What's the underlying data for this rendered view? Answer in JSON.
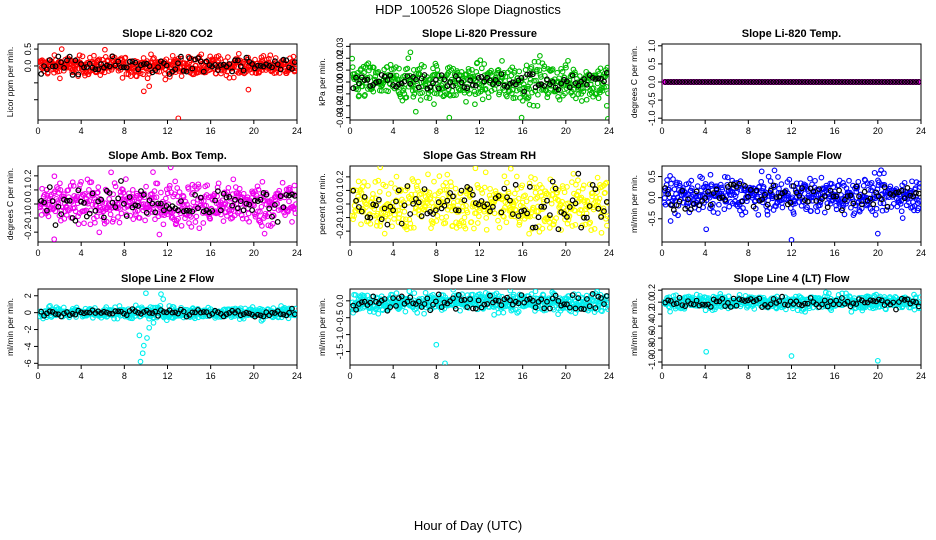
{
  "title": "HDP_100526  Slope Diagnostics",
  "xlabel": "Hour of Day (UTC)",
  "chart_data": [
    {
      "type": "scatter",
      "title": "Slope Li-820 CO2",
      "ylabel": "Licor ppm per min.",
      "xlim": [
        0,
        24
      ],
      "xticks": [
        0,
        4,
        8,
        12,
        16,
        20,
        24
      ],
      "ylim": [
        -1.6,
        0.65
      ],
      "yticks": [
        -1.0,
        -0.5,
        0.0,
        0.5
      ],
      "ytick_labels": [
        "",
        "",
        "0.0",
        "0.5"
      ],
      "color": "#ff0000",
      "center": 0.0,
      "spread": 0.14,
      "hourly_spread": 0.13,
      "outliers": [
        [
          8.6,
          -0.3
        ],
        [
          9.8,
          -0.75
        ],
        [
          10.3,
          -0.6
        ],
        [
          11.8,
          -0.4
        ],
        [
          13.0,
          -1.55
        ],
        [
          19.5,
          -0.7
        ],
        [
          2.2,
          0.5
        ],
        [
          6.2,
          0.48
        ]
      ]
    },
    {
      "type": "scatter",
      "title": "Slope Li-820 Pressure",
      "ylabel": "kPa per min.",
      "xlim": [
        0,
        24
      ],
      "xticks": [
        0,
        4,
        8,
        12,
        16,
        20,
        24
      ],
      "ylim": [
        -0.032,
        0.032
      ],
      "yticks": [
        -0.03,
        -0.02,
        -0.01,
        0.0,
        0.01,
        0.02,
        0.03
      ],
      "ytick_labels": [
        "-0.03",
        "-0.02",
        "-0.01",
        "0.00",
        "0.01",
        "0.02",
        "0.03"
      ],
      "color": "#00bb00",
      "center": 0.0,
      "spread": 0.008,
      "hourly_spread": 0.004,
      "outliers": [
        [
          5.6,
          0.025
        ],
        [
          6.1,
          -0.025
        ],
        [
          9.2,
          -0.03
        ],
        [
          15.9,
          -0.03
        ],
        [
          17.6,
          0.022
        ],
        [
          23.9,
          -0.031
        ],
        [
          23.8,
          -0.02
        ]
      ]
    },
    {
      "type": "scatter",
      "title": "Slope Li-820 Temp.",
      "ylabel": "degrees C per min.",
      "xlim": [
        0,
        24
      ],
      "xticks": [
        0,
        4,
        8,
        12,
        16,
        20,
        24
      ],
      "ylim": [
        -1.05,
        1.05
      ],
      "yticks": [
        -1.0,
        -0.5,
        0.0,
        0.5,
        1.0
      ],
      "ytick_labels": [
        "-1.0",
        "-0.5",
        "0.0",
        "0.5",
        "1.0"
      ],
      "color": "#ff00ff",
      "center": 0.0,
      "spread": 0.0,
      "hourly_spread": 0.0,
      "outliers": []
    },
    {
      "type": "scatter",
      "title": "Slope Amb. Box Temp.",
      "ylabel": "degrees C per min.",
      "xlim": [
        0,
        24
      ],
      "xticks": [
        0,
        4,
        8,
        12,
        16,
        20,
        24
      ],
      "ylim": [
        -0.27,
        0.27
      ],
      "yticks": [
        -0.2,
        -0.1,
        0.0,
        0.1,
        0.2
      ],
      "ytick_labels": [
        "-0.2",
        "-0.1",
        "0.0",
        "0.1",
        "0.2"
      ],
      "color": "#ee00ee",
      "center": 0.0,
      "spread": 0.08,
      "hourly_spread": 0.06,
      "outliers": [
        [
          12.3,
          0.26
        ],
        [
          1.5,
          -0.25
        ],
        [
          21.0,
          -0.21
        ]
      ]
    },
    {
      "type": "scatter",
      "title": "Slope Gas Stream RH",
      "ylabel": "percent per min.",
      "xlim": [
        0,
        24
      ],
      "xticks": [
        0,
        4,
        8,
        12,
        16,
        20,
        24
      ],
      "ylim": [
        -0.28,
        0.28
      ],
      "yticks": [
        -0.2,
        -0.1,
        0.0,
        0.1,
        0.2
      ],
      "ytick_labels": [
        "-0.2",
        "-0.1",
        "0.0",
        "0.1",
        "0.2"
      ],
      "color": "#ffff00",
      "center": 0.0,
      "spread": 0.1,
      "hourly_spread": 0.09,
      "outliers": [
        [
          2.8,
          0.27
        ],
        [
          14.9,
          0.26
        ]
      ]
    },
    {
      "type": "scatter",
      "title": "Slope Sample Flow",
      "ylabel": "ml/min per min.",
      "xlim": [
        0,
        24
      ],
      "xticks": [
        0,
        4,
        8,
        12,
        16,
        20,
        24
      ],
      "ylim": [
        -1.05,
        0.75
      ],
      "yticks": [
        -0.5,
        0.0,
        0.5
      ],
      "ytick_labels": [
        "-0.5",
        "0.0",
        "0.5"
      ],
      "color": "#0000ff",
      "center": 0.05,
      "spread": 0.2,
      "hourly_spread": 0.18,
      "outliers": [
        [
          4.1,
          -0.75
        ],
        [
          12.0,
          -1.0
        ],
        [
          20.0,
          -0.85
        ],
        [
          20.3,
          0.65
        ]
      ]
    },
    {
      "type": "scatter",
      "title": "Slope Line 2 Flow",
      "ylabel": "ml/min per min.",
      "xlim": [
        0,
        24
      ],
      "xticks": [
        0,
        4,
        8,
        12,
        16,
        20,
        24
      ],
      "ylim": [
        -6.2,
        2.8
      ],
      "yticks": [
        -6,
        -4,
        -2,
        0,
        2
      ],
      "ytick_labels": [
        "-6",
        "-4",
        "-2",
        "0",
        "2"
      ],
      "color": "#00eeee",
      "center": 0.0,
      "spread": 0.35,
      "hourly_spread": 0.2,
      "outliers": [
        [
          9.5,
          -5.8
        ],
        [
          9.7,
          -4.8
        ],
        [
          9.8,
          -3.9
        ],
        [
          10.1,
          -3.0
        ],
        [
          10.3,
          -1.8
        ],
        [
          9.4,
          -2.7
        ],
        [
          10.7,
          -1.2
        ],
        [
          10.0,
          2.3
        ],
        [
          11.4,
          2.2
        ],
        [
          11.6,
          1.6
        ]
      ]
    },
    {
      "type": "scatter",
      "title": "Slope Line 3 Flow",
      "ylabel": "ml/min per min.",
      "xlim": [
        0,
        24
      ],
      "xticks": [
        0,
        4,
        8,
        12,
        16,
        20,
        24
      ],
      "ylim": [
        -1.9,
        0.35
      ],
      "yticks": [
        -1.5,
        -1.0,
        -0.5,
        0.0
      ],
      "ytick_labels": [
        "-1.5",
        "-1.0",
        "-0.5",
        "0.0"
      ],
      "color": "#00eeee",
      "center": -0.05,
      "spread": 0.14,
      "hourly_spread": 0.12,
      "outliers": [
        [
          8.0,
          -1.3
        ],
        [
          8.8,
          -1.85
        ]
      ]
    },
    {
      "type": "scatter",
      "title": "Slope Line 4 (LT) Flow",
      "ylabel": "ml/min per min.",
      "xlim": [
        0,
        24
      ],
      "xticks": [
        0,
        4,
        8,
        12,
        16,
        20,
        24
      ],
      "ylim": [
        -1.05,
        0.22
      ],
      "yticks": [
        -1.0,
        -0.8,
        -0.6,
        -0.4,
        -0.2,
        0.0,
        0.2
      ],
      "ytick_labels": [
        "-1.0",
        "-0.8",
        "-0.6",
        "-0.4",
        "-0.2",
        "0.0",
        "0.2"
      ],
      "color": "#00eeee",
      "center": 0.0,
      "spread": 0.06,
      "hourly_spread": 0.05,
      "outliers": [
        [
          4.1,
          -0.83
        ],
        [
          12.0,
          -0.9
        ],
        [
          20.0,
          -0.98
        ]
      ]
    }
  ]
}
